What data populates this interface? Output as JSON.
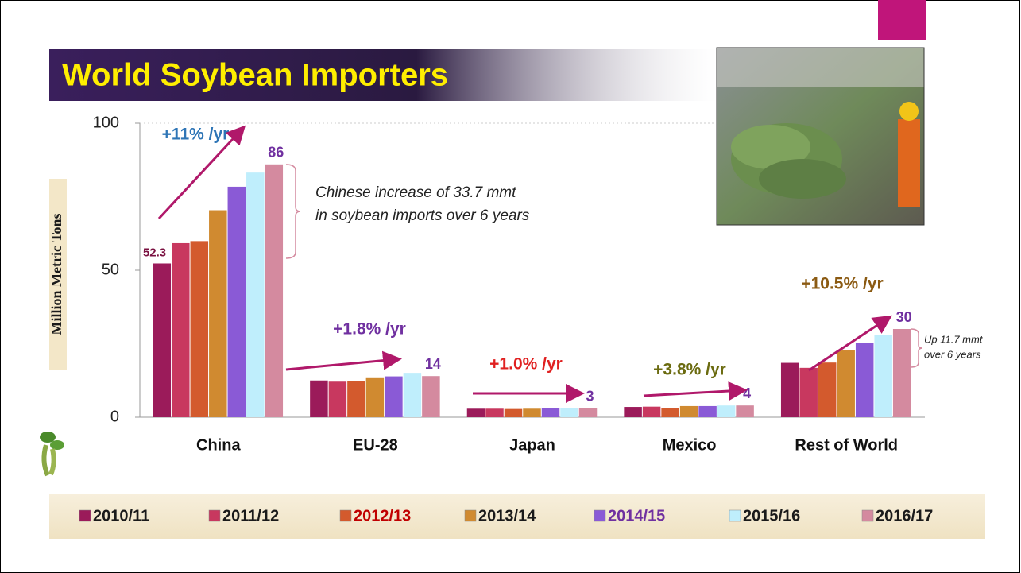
{
  "chart_data": {
    "type": "bar",
    "title": "World Soybean Importers",
    "y_label": "Million Metric Tons",
    "categories": [
      "China",
      "EU-28",
      "Japan",
      "Mexico",
      "Rest of World"
    ],
    "series": [
      {
        "name": "2010/11",
        "color": "#9b1b5a",
        "label_color": "#1a1a1a",
        "values": [
          52.3,
          12.5,
          2.9,
          3.5,
          18.5
        ]
      },
      {
        "name": "2011/12",
        "color": "#c8385f",
        "label_color": "#1a1a1a",
        "values": [
          59.2,
          12.1,
          2.9,
          3.6,
          16.8
        ]
      },
      {
        "name": "2012/13",
        "color": "#d35a2d",
        "label_color": "#c00000",
        "values": [
          59.9,
          12.4,
          2.8,
          3.2,
          18.6
        ]
      },
      {
        "name": "2013/14",
        "color": "#d08a30",
        "label_color": "#1a1a1a",
        "values": [
          70.4,
          13.3,
          2.9,
          3.8,
          22.7
        ]
      },
      {
        "name": "2014/15",
        "color": "#8a5ad6",
        "label_color": "#7030a0",
        "values": [
          78.4,
          13.9,
          3.0,
          3.8,
          25.3
        ]
      },
      {
        "name": "2015/16",
        "color": "#bfeefc",
        "label_color": "#1a1a1a",
        "values": [
          83.2,
          15.1,
          3.2,
          4.0,
          28.0
        ]
      },
      {
        "name": "2016/17",
        "color": "#d48a9f",
        "label_color": "#1a1a1a",
        "values": [
          86,
          14,
          3,
          4,
          30
        ]
      }
    ],
    "ylim": [
      0,
      100
    ],
    "yticks": [
      0,
      50,
      100
    ],
    "grid": false,
    "annotations": [
      {
        "text": "+11% /yr",
        "color": "#2e75b6"
      },
      {
        "text": "+1.8% /yr",
        "color": "#7030a0"
      },
      {
        "text": "+1.0% /yr",
        "color": "#e02020"
      },
      {
        "text": "+3.8% /yr",
        "color": "#6b6b10"
      },
      {
        "text": "+10.5% /yr",
        "color": "#8b5a12"
      }
    ],
    "notes": [
      {
        "lines": [
          "Chinese increase of 33.7 mmt",
          "in soybean imports over 6 years"
        ]
      },
      {
        "lines": [
          "Up 11.7 mmt",
          "over 6 years"
        ]
      }
    ]
  }
}
